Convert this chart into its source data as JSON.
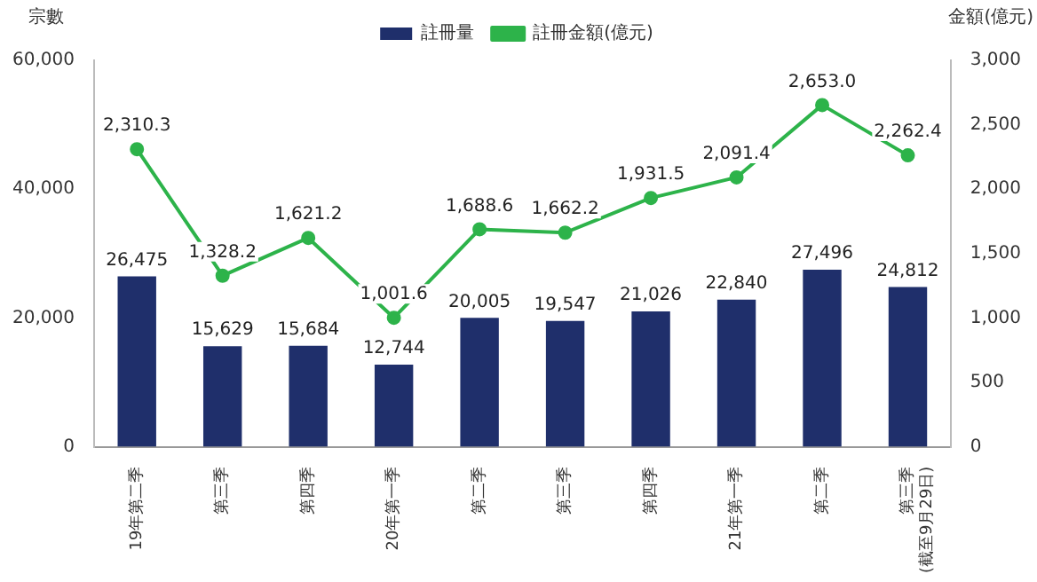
{
  "chart_data": {
    "type": "bar",
    "ylabel": "宗數",
    "y2label": "金額(億元)",
    "categories": [
      "19年第二季",
      "第三季",
      "第四季",
      "20年第一季",
      "第二季",
      "第三季",
      "第四季",
      "21年第一季",
      "第二季",
      "第三季\n(截至9月29日)"
    ],
    "series": [
      {
        "name": "註冊量",
        "color": "#1f2f6b",
        "values": [
          26475,
          15629,
          15684,
          12744,
          20005,
          19547,
          21026,
          22840,
          27496,
          24812
        ],
        "value_labels": [
          "26,475",
          "15,629",
          "15,684",
          "12,744",
          "20,005",
          "19,547",
          "21,026",
          "22,840",
          "27,496",
          "24,812"
        ]
      },
      {
        "name": "註冊金額(億元)",
        "type": "line",
        "axis": "y2",
        "color": "#2db34a",
        "marker": "circle",
        "values": [
          2310.3,
          1328.2,
          1621.2,
          1001.6,
          1688.6,
          1662.2,
          1931.5,
          2091.4,
          2653.0,
          2262.4
        ],
        "value_labels": [
          "2,310.3",
          "1,328.2",
          "1,621.2",
          "1,001.6",
          "1,688.6",
          "1,662.2",
          "1,931.5",
          "2,091.4",
          "2,653.0",
          "2,262.4"
        ]
      }
    ],
    "ylim": [
      0,
      60000
    ],
    "yticks": [
      {
        "value": 0,
        "label": "0"
      },
      {
        "value": 20000,
        "label": "20,000"
      },
      {
        "value": 40000,
        "label": "40,000"
      },
      {
        "value": 60000,
        "label": "60,000"
      }
    ],
    "y2lim": [
      0,
      3000
    ],
    "y2ticks": [
      {
        "value": 0,
        "label": "0"
      },
      {
        "value": 500,
        "label": "500"
      },
      {
        "value": 1000,
        "label": "1,000"
      },
      {
        "value": 1500,
        "label": "1,500"
      },
      {
        "value": 2000,
        "label": "2,000"
      },
      {
        "value": 2500,
        "label": "2,500"
      },
      {
        "value": 3000,
        "label": "3,000"
      }
    ],
    "legend": "top",
    "grid": false
  }
}
